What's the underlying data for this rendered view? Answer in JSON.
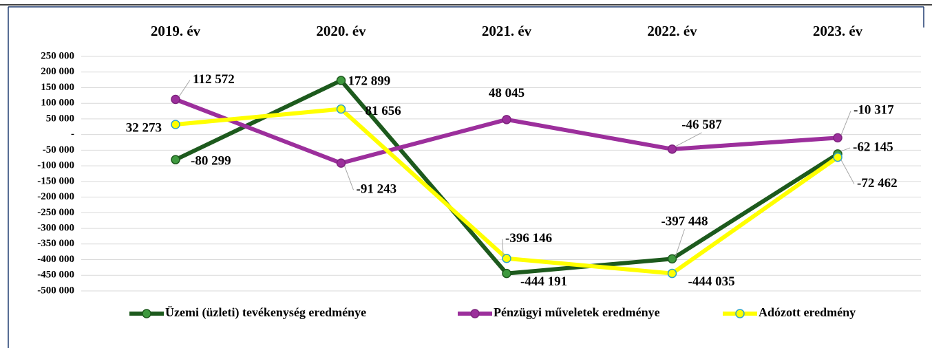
{
  "chart_data": {
    "type": "line",
    "categories": [
      "2019. év",
      "2020. év",
      "2021. év",
      "2022. év",
      "2023. év"
    ],
    "series": [
      {
        "name": "Üzemi (üzleti) tevékenység eredménye",
        "color": "#1d5a1d",
        "values": [
          -80299,
          172899,
          -444191,
          -397448,
          -62145
        ],
        "value_labels": [
          "-80 299",
          "172 899",
          "-444 191",
          "-397 448",
          "-62 145"
        ]
      },
      {
        "name": "Pénzügyi műveletek eredménye",
        "color": "#9c2f9c",
        "values": [
          112572,
          -91243,
          48045,
          -46587,
          -10317
        ],
        "value_labels": [
          "112 572",
          "-91 243",
          "48 045",
          "-46 587",
          "-10 317"
        ]
      },
      {
        "name": "Adózott eredmény",
        "color": "#ffff00",
        "values": [
          32273,
          81656,
          -396146,
          -444035,
          -72462
        ],
        "value_labels": [
          "32 273",
          "81 656",
          "-396 146",
          "-444 035",
          "-72 462"
        ]
      }
    ],
    "ylim": [
      -500000,
      250000
    ],
    "yticks": [
      {
        "value": 250000,
        "label": "250 000"
      },
      {
        "value": 200000,
        "label": "200 000"
      },
      {
        "value": 150000,
        "label": "150 000"
      },
      {
        "value": 100000,
        "label": "100 000"
      },
      {
        "value": 50000,
        "label": "50 000"
      },
      {
        "value": 0,
        "label": "-"
      },
      {
        "value": -50000,
        "label": "-50 000"
      },
      {
        "value": -100000,
        "label": "-100 000"
      },
      {
        "value": -150000,
        "label": "-150 000"
      },
      {
        "value": -200000,
        "label": "-200 000"
      },
      {
        "value": -250000,
        "label": "-250 000"
      },
      {
        "value": -300000,
        "label": "-300 000"
      },
      {
        "value": -350000,
        "label": "-350 000"
      },
      {
        "value": -400000,
        "label": "-400 000"
      },
      {
        "value": -450000,
        "label": "-450 000"
      },
      {
        "value": -500000,
        "label": "-500 000"
      }
    ],
    "grid": true,
    "legend": "bottom"
  }
}
